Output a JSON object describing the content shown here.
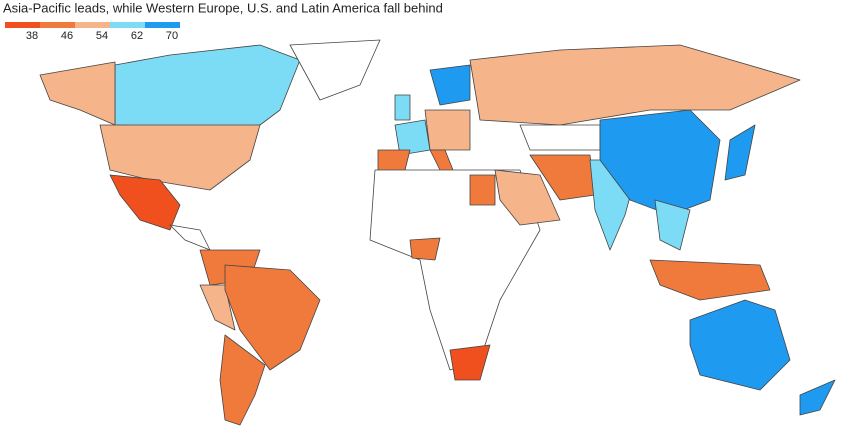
{
  "title": "Asia-Pacific leads, while Western Europe, U.S. and Latin America fall behind",
  "legend": {
    "ticks": [
      38,
      46,
      54,
      62,
      70
    ],
    "colors": [
      "#f0501e",
      "#f07a3c",
      "#f5b48a",
      "#7ddcf5",
      "#1e9bf0"
    ]
  },
  "map": {
    "region_colors": [
      "#7ddcf5",
      "#f5b48a",
      "#f5b48a",
      "#ffffff",
      "#f0501e",
      "#ffffff",
      "#f07a3c",
      "#f5b48a",
      "#f07a3c",
      "#f07a3c",
      "#7ddcf5",
      "#f07a3c",
      "#7ddcf5",
      "#1e9bf0",
      "#f5b48a",
      "#f07a3c",
      "#f5b48a",
      "#ffffff",
      "#f07a3c",
      "#f07a3c",
      "#f0501e",
      "#f5b48a",
      "#f07a3c",
      "#ffffff",
      "#7ddcf5",
      "#1e9bf0",
      "#1e9bf0",
      "#7ddcf5",
      "#f07a3c",
      "#1e9bf0",
      "#1e9bf0"
    ]
  }
}
